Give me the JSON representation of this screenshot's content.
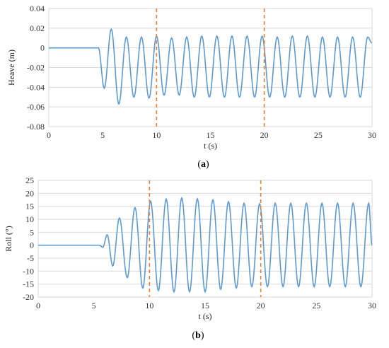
{
  "colors": {
    "series": "#5b9bd5",
    "markers": "#ed7d31",
    "grid": "#d9d9d9"
  },
  "chart_data": [
    {
      "type": "line",
      "panel_label": "a",
      "xlabel": "t (s)",
      "ylabel": "Heave (m)",
      "xlim": [
        0,
        30
      ],
      "ylim": [
        -0.08,
        0.04
      ],
      "x_ticks": [
        "0",
        "5",
        "10",
        "15",
        "20",
        "25",
        "30"
      ],
      "y_ticks": [
        "0.04",
        "0.02",
        "0",
        "-0.02",
        "-0.04",
        "-0.06",
        "-0.08"
      ],
      "grid": "horizontal",
      "vertical_markers": [
        10,
        20
      ],
      "series": [
        {
          "x": [
            0,
            4.6,
            5.15,
            5.8,
            6.5,
            7.2,
            7.9,
            8.6,
            9.3,
            10.0,
            10.7,
            11.4,
            12.1,
            12.8,
            13.5,
            14.2,
            14.9,
            15.6,
            16.3,
            17.0,
            17.7,
            18.4,
            19.1,
            19.8,
            20.5,
            21.2,
            21.9,
            22.6,
            23.3,
            24.0,
            24.7,
            25.4,
            26.1,
            26.8,
            27.5,
            28.2,
            28.9,
            29.6,
            30.0
          ],
          "peaks": [
            0,
            0,
            -0.041,
            0.019,
            -0.057,
            0.011,
            -0.05,
            0.011,
            -0.051,
            0.012,
            -0.048,
            0.01,
            -0.048,
            0.011,
            -0.05,
            0.012,
            -0.05,
            0.012,
            -0.05,
            0.012,
            -0.05,
            0.012,
            -0.05,
            0.012,
            -0.05,
            0.011,
            -0.05,
            0.012,
            -0.05,
            0.012,
            -0.05,
            0.011,
            -0.05,
            0.011,
            -0.05,
            0.011,
            -0.05,
            0.011,
            0.005
          ]
        }
      ]
    },
    {
      "type": "line",
      "panel_label": "b",
      "xlabel": "t (s)",
      "ylabel": "Roll (°)",
      "xlim": [
        0,
        30
      ],
      "ylim": [
        -20,
        25
      ],
      "x_ticks": [
        "0",
        "5",
        "10",
        "15",
        "20",
        "25",
        "30"
      ],
      "y_ticks": [
        "25",
        "20",
        "15",
        "10",
        "5",
        "0",
        "-5",
        "-10",
        "-15",
        "-20"
      ],
      "grid": "horizontal",
      "vertical_markers": [
        10,
        20
      ],
      "series": [
        {
          "x": [
            0,
            5.5,
            5.8,
            6.2,
            6.7,
            7.3,
            8.0,
            8.7,
            9.4,
            10.1,
            10.8,
            11.5,
            12.2,
            12.9,
            13.6,
            14.3,
            15.0,
            15.7,
            16.4,
            17.1,
            17.8,
            18.5,
            19.2,
            19.9,
            20.6,
            21.3,
            22.0,
            22.7,
            23.4,
            24.1,
            24.8,
            25.5,
            26.2,
            26.9,
            27.6,
            28.3,
            29.0,
            29.7,
            30.0
          ],
          "peaks": [
            0,
            0,
            -0.8,
            4,
            -8,
            10.5,
            -12.5,
            14.5,
            -16.5,
            17,
            -17.5,
            17.8,
            -18,
            18.2,
            -18,
            17.9,
            -18,
            17.5,
            -17,
            16.8,
            -16.5,
            16.2,
            -16,
            16,
            -16,
            16.2,
            -16,
            16.2,
            -16,
            16.2,
            -16,
            16.2,
            -16,
            16.2,
            -16,
            16.2,
            -16,
            16.2,
            0
          ]
        }
      ]
    }
  ]
}
